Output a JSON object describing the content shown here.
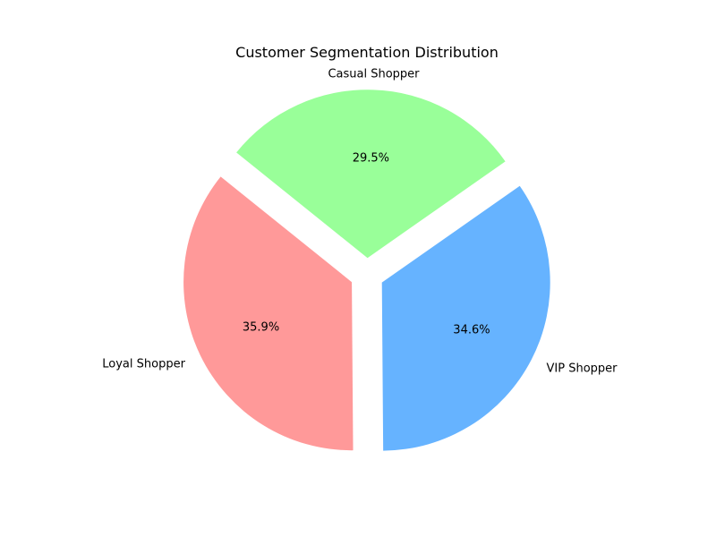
{
  "chart_data": {
    "type": "pie",
    "title": "Customer Segmentation Distribution",
    "labels": [
      "Loyal Shopper",
      "VIP Shopper",
      "Casual Shopper"
    ],
    "values": [
      35.9,
      34.6,
      29.5
    ],
    "percent_labels": [
      "35.9%",
      "34.6%",
      "29.5%"
    ],
    "colors": [
      "#ff9999",
      "#66b3ff",
      "#99ff99"
    ],
    "exploded": true,
    "legend": "none"
  }
}
